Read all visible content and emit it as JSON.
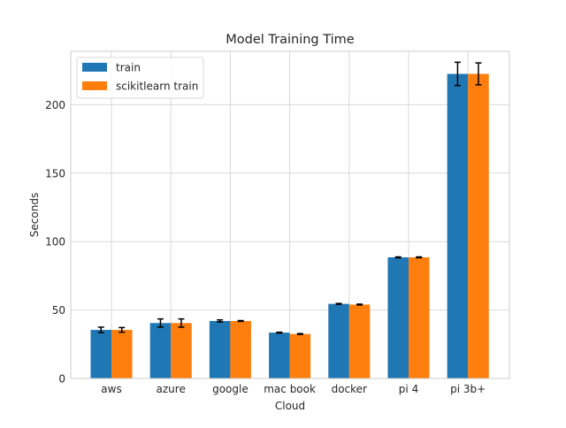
{
  "chart_data": {
    "type": "bar",
    "title": "Model Training Time",
    "xlabel": "Cloud",
    "ylabel": "Seconds",
    "categories": [
      "aws",
      "azure",
      "google",
      "mac book",
      "docker",
      "pi 4",
      "pi 3b+"
    ],
    "series": [
      {
        "name": "train",
        "color": "#1f77b4",
        "values": [
          35.5,
          40.5,
          42.0,
          33.5,
          54.5,
          88.5,
          222.5
        ],
        "errors": [
          2.0,
          3.0,
          0.8,
          0.3,
          0.3,
          0.3,
          8.5
        ]
      },
      {
        "name": "scikitlearn train",
        "color": "#ff7f0e",
        "values": [
          35.5,
          40.5,
          42.0,
          32.5,
          54.0,
          88.5,
          222.5
        ],
        "errors": [
          1.7,
          3.0,
          0.3,
          0.3,
          0.3,
          0.3,
          8.0
        ]
      }
    ],
    "ylim": [
      0,
      239
    ],
    "yticks": [
      0,
      50,
      100,
      150,
      200
    ],
    "grid": true,
    "legend": "top-left"
  }
}
